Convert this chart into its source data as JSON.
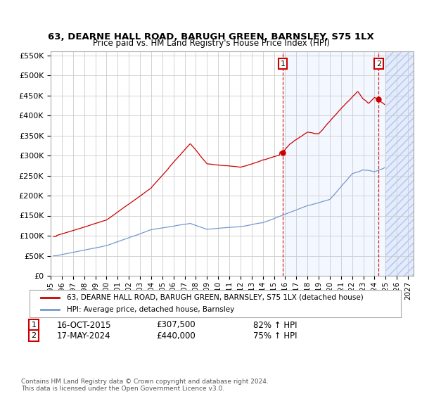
{
  "title": "63, DEARNE HALL ROAD, BARUGH GREEN, BARNSLEY, S75 1LX",
  "subtitle": "Price paid vs. HM Land Registry's House Price Index (HPI)",
  "ylim": [
    0,
    560000
  ],
  "yticks": [
    0,
    50000,
    100000,
    150000,
    200000,
    250000,
    300000,
    350000,
    400000,
    450000,
    500000,
    550000
  ],
  "ytick_labels": [
    "£0",
    "£50K",
    "£100K",
    "£150K",
    "£200K",
    "£250K",
    "£300K",
    "£350K",
    "£400K",
    "£450K",
    "£500K",
    "£550K"
  ],
  "xlim_start": 1995.0,
  "xlim_end": 2027.5,
  "xticks": [
    1995,
    1996,
    1997,
    1998,
    1999,
    2000,
    2001,
    2002,
    2003,
    2004,
    2005,
    2006,
    2007,
    2008,
    2009,
    2010,
    2011,
    2012,
    2013,
    2014,
    2015,
    2016,
    2017,
    2018,
    2019,
    2020,
    2021,
    2022,
    2023,
    2024,
    2025,
    2026,
    2027
  ],
  "background_color": "#ffffff",
  "grid_color": "#cccccc",
  "hatch_start": 2025.0,
  "purchase1_x": 2015.79,
  "purchase1_y": 307500,
  "purchase2_x": 2024.37,
  "purchase2_y": 440000,
  "line_red_color": "#cc0000",
  "line_blue_color": "#7799cc",
  "legend_red_label": "63, DEARNE HALL ROAD, BARUGH GREEN, BARNSLEY, S75 1LX (detached house)",
  "legend_blue_label": "HPI: Average price, detached house, Barnsley",
  "annotation1_date": "16-OCT-2015",
  "annotation1_price": "£307,500",
  "annotation1_hpi": "82% ↑ HPI",
  "annotation2_date": "17-MAY-2024",
  "annotation2_price": "£440,000",
  "annotation2_hpi": "75% ↑ HPI",
  "footnote": "Contains HM Land Registry data © Crown copyright and database right 2024.\nThis data is licensed under the Open Government Licence v3.0."
}
